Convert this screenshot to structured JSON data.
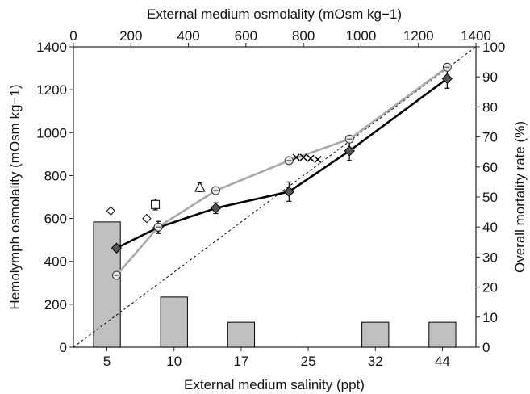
{
  "chart_data": {
    "type": "bar+line+scatter",
    "top_axis": {
      "label": "External medium osmolality (mOsm kg−1)",
      "range": [
        0,
        1400
      ],
      "ticks": [
        "0",
        "200",
        "400",
        "600",
        "800",
        "1000",
        "1200",
        "1400"
      ]
    },
    "left_axis": {
      "label": "Hemolymph osmolality (mOsm kg−1)",
      "range": [
        0,
        1400
      ],
      "ticks": [
        "0",
        "200",
        "400",
        "600",
        "800",
        "1000",
        "1200",
        "1400"
      ]
    },
    "right_axis": {
      "label": "Overall mortality rate (%)",
      "range": [
        0,
        100
      ],
      "ticks": [
        "0",
        "10",
        "20",
        "30",
        "40",
        "50",
        "60",
        "70",
        "80",
        "90",
        "100"
      ]
    },
    "bottom_axis": {
      "label": "External medium salinity (ppt)",
      "categories": [
        "5",
        "10",
        "17",
        "25",
        "32",
        "44"
      ]
    },
    "bars": {
      "axis": "right",
      "categories": [
        "5",
        "10",
        "17",
        "25",
        "32",
        "44"
      ],
      "values": [
        41.7,
        16.7,
        8.3,
        0,
        8.3,
        8.3
      ],
      "color": "#c0c0c0"
    },
    "isosmotic_line": {
      "style": "dashed",
      "x": [
        0,
        1400
      ],
      "y": [
        0,
        1400
      ]
    },
    "series": [
      {
        "color": "#000000",
        "marker": "diamond",
        "x": [
          150,
          295,
          495,
          750,
          960,
          1300
        ],
        "y": [
          462,
          558,
          648,
          725,
          915,
          1252
        ],
        "err": [
          15,
          28,
          25,
          45,
          45,
          45
        ]
      },
      {
        "color": "#a8a8a8",
        "marker": "circle",
        "x": [
          150,
          295,
          495,
          750,
          960,
          1300
        ],
        "y": [
          335,
          560,
          730,
          870,
          970,
          1305
        ],
        "err": [
          0,
          0,
          0,
          0,
          0,
          0
        ]
      },
      {
        "color": "#000000",
        "marker": "x",
        "x": [
          775,
          800,
          825,
          850
        ],
        "y": [
          885,
          885,
          880,
          875
        ],
        "err": [
          0,
          0,
          0,
          0
        ]
      }
    ],
    "scatter_points": [
      {
        "marker": "diamond-open",
        "x": 130,
        "y": 635,
        "err": 0
      },
      {
        "marker": "diamond-open",
        "x": 255,
        "y": 600,
        "err": 0
      },
      {
        "marker": "square-open",
        "x": 285,
        "y": 665,
        "err": 25
      },
      {
        "marker": "triangle-open",
        "x": 440,
        "y": 745,
        "err": 20
      }
    ]
  }
}
